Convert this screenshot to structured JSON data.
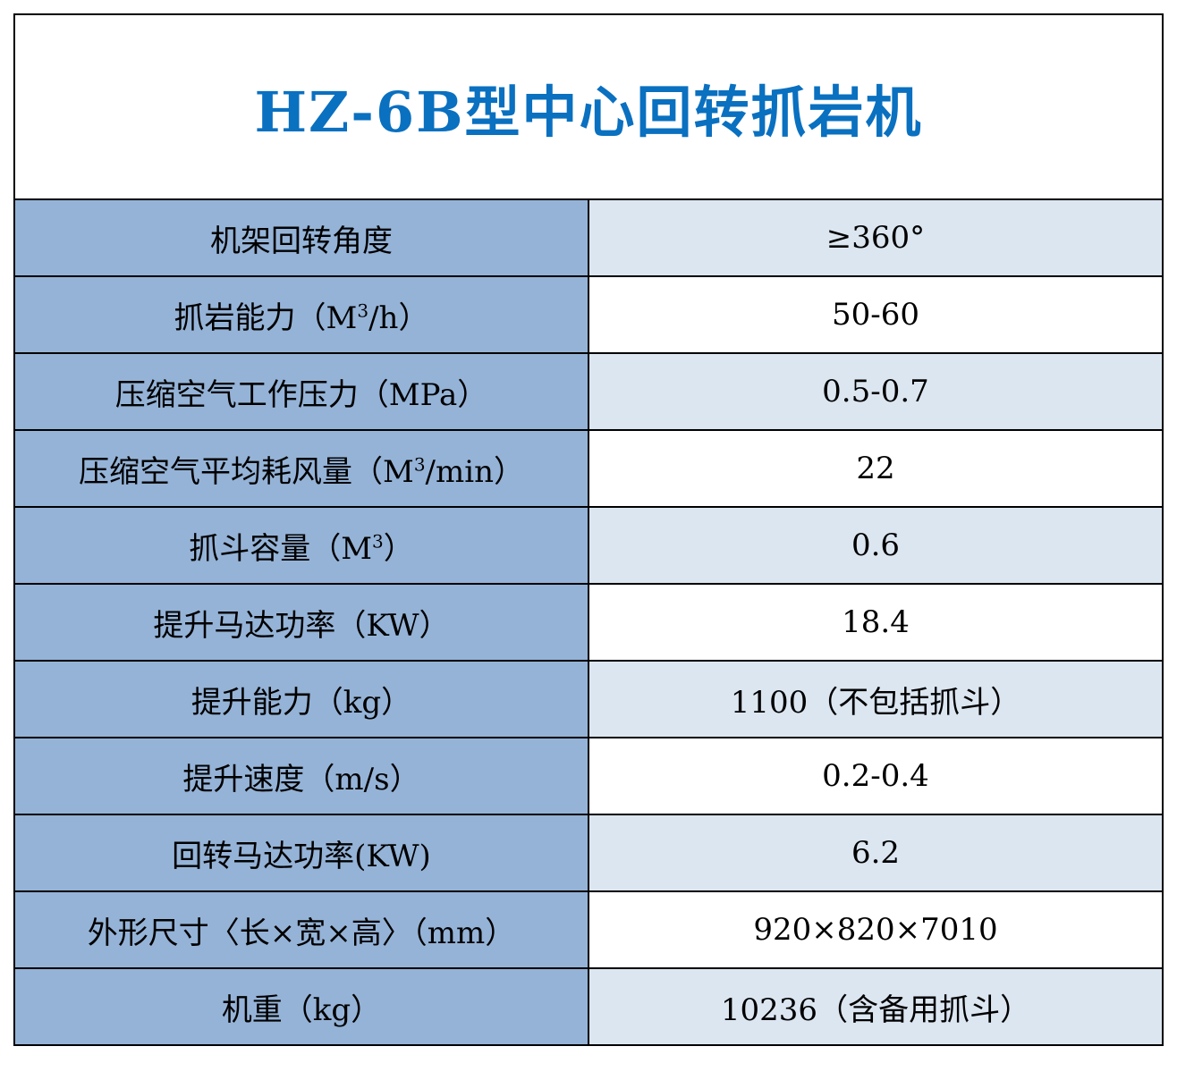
{
  "title": "HZ-6B型中心回转抓岩机",
  "colors": {
    "title": "#0a70c0",
    "label_bg": "#95b3d7",
    "value_bg_alt": "#dce6f1"
  },
  "rows": [
    {
      "label": "机架回转角度",
      "sup": "",
      "label_end": "",
      "value": "≥360°"
    },
    {
      "label": "抓岩能力（M",
      "sup": "3",
      "label_end": "/h）",
      "value": "50-60"
    },
    {
      "label": "压缩空气工作压力（MPa）",
      "sup": "",
      "label_end": "",
      "value": "0.5-0.7"
    },
    {
      "label": "压缩空气平均耗风量（M",
      "sup": "3",
      "label_end": "/min）",
      "value": "22"
    },
    {
      "label": "抓斗容量（M",
      "sup": "3",
      "label_end": "）",
      "value": "0.6"
    },
    {
      "label": "提升马达功率（KW）",
      "sup": "",
      "label_end": "",
      "value": "18.4"
    },
    {
      "label": "提升能力（kg）",
      "sup": "",
      "label_end": "",
      "value": "1100（不包括抓斗）"
    },
    {
      "label": "提升速度（m/s）",
      "sup": "",
      "label_end": "",
      "value": "0.2-0.4"
    },
    {
      "label": "回转马达功率(KW)",
      "sup": "",
      "label_end": "",
      "value": "6.2"
    },
    {
      "label": "外形尺寸〈长×宽×高〉（mm）",
      "sup": "",
      "label_end": "",
      "value": "920×820×7010"
    },
    {
      "label": "机重（kg）",
      "sup": "",
      "label_end": "",
      "value": "10236（含备用抓斗）"
    }
  ]
}
